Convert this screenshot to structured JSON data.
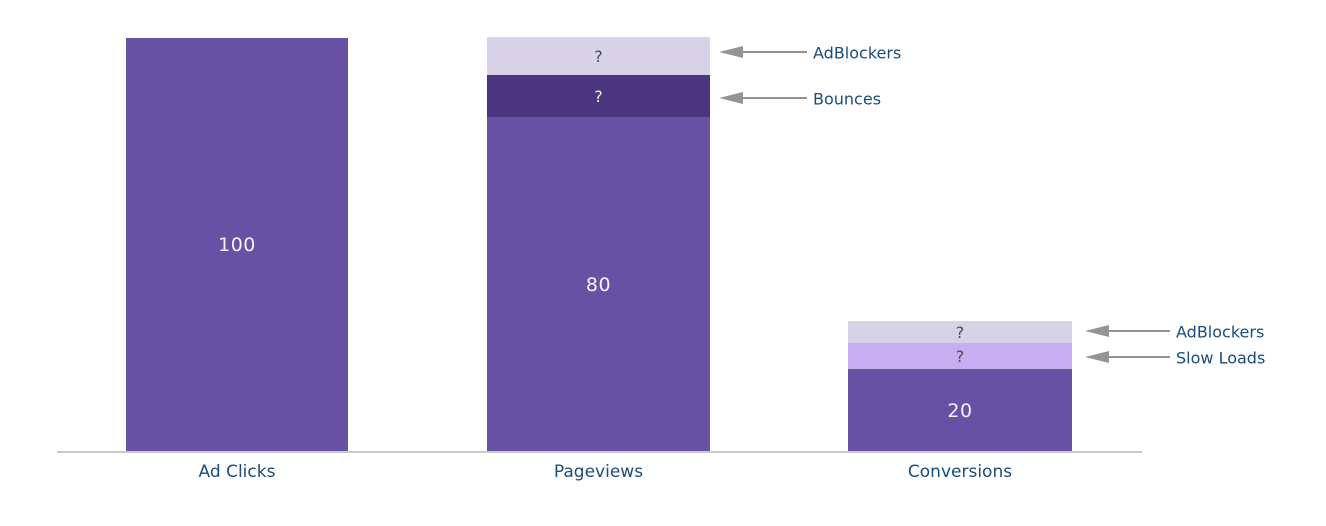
{
  "chart_data": {
    "type": "bar",
    "subtype": "stacked_funnel",
    "title": "",
    "xlabel": "",
    "ylabel": "",
    "ylim": [
      0,
      100
    ],
    "grid": false,
    "legend_position": "none",
    "categories": [
      "Ad Clicks",
      "Pageviews",
      "Conversions"
    ],
    "bars": [
      {
        "category": "Ad Clicks",
        "total": 100,
        "segments": [
          {
            "name": "Ad Clicks",
            "label": "100",
            "value": 100,
            "color": "#6751a5"
          }
        ]
      },
      {
        "category": "Pageviews",
        "total": 100,
        "segments": [
          {
            "name": "AdBlockers",
            "label": "?",
            "value": null,
            "estimated_value": 9,
            "color": "#d7d2e8"
          },
          {
            "name": "Bounces",
            "label": "?",
            "value": null,
            "estimated_value": 10,
            "color": "#4b3480"
          },
          {
            "name": "Pageviews",
            "label": "80",
            "value": 80,
            "color": "#6751a5"
          }
        ]
      },
      {
        "category": "Conversions",
        "total": 31,
        "segments": [
          {
            "name": "AdBlockers",
            "label": "?",
            "value": null,
            "estimated_value": 5,
            "color": "#d7d2e8"
          },
          {
            "name": "Slow Loads",
            "label": "?",
            "value": null,
            "estimated_value": 6,
            "color": "#c8adf0"
          },
          {
            "name": "Conversions",
            "label": "20",
            "value": 20,
            "color": "#6751a5"
          }
        ]
      }
    ],
    "annotations": [
      {
        "text": "AdBlockers",
        "points_to": "Pageviews AdBlockers segment"
      },
      {
        "text": "Bounces",
        "points_to": "Pageviews Bounces segment"
      },
      {
        "text": "AdBlockers",
        "points_to": "Conversions AdBlockers segment"
      },
      {
        "text": "Slow Loads",
        "points_to": "Conversions Slow Loads segment"
      }
    ],
    "colors": {
      "bar_main": "#6751a5",
      "bounces": "#4b3480",
      "adblockers": "#d7d2e8",
      "slow_loads": "#c8adf0",
      "category_text": "#1a4c7c",
      "annotation_text": "#1a4c7c",
      "value_text": "#f5f2fa",
      "question_dark": "#4d4d4d",
      "arrow": "#949494",
      "axis": "#c9c9c9",
      "background": "#ffffff"
    }
  }
}
